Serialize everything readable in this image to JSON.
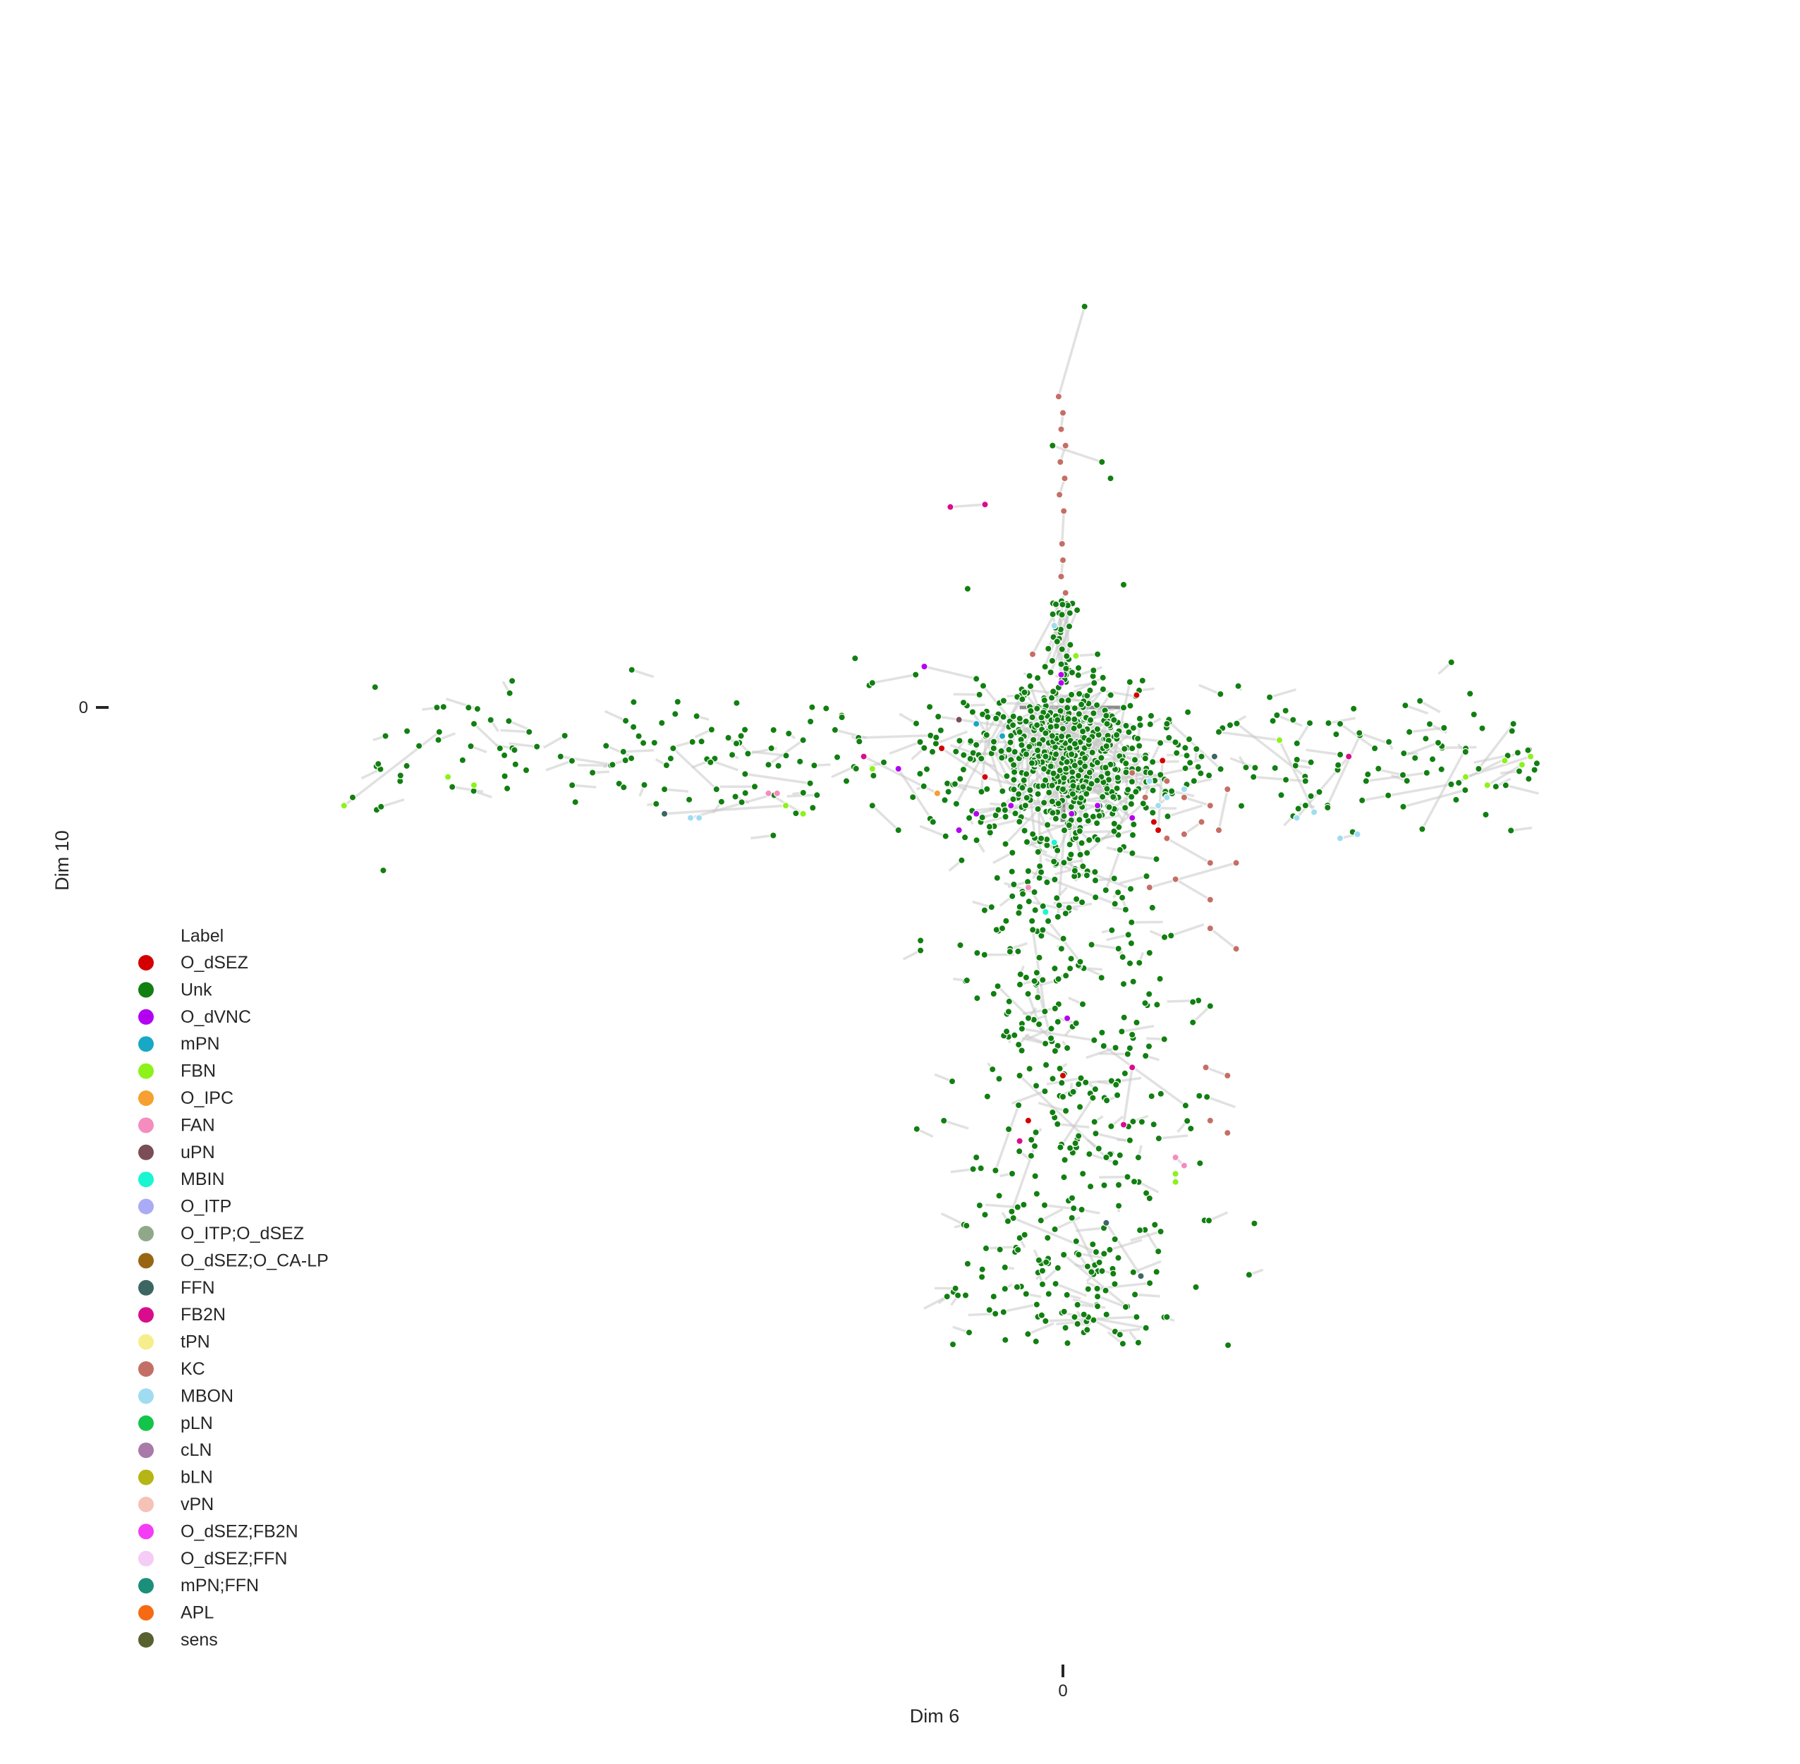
{
  "chart_data": {
    "type": "scatter",
    "xlabel": "Dim 6",
    "ylabel": "Dim 10",
    "xticks": [
      {
        "value": 0,
        "label": "0"
      }
    ],
    "yticks": [
      {
        "value": 0,
        "label": "0"
      }
    ],
    "xlim": [
      -1.0,
      0.7
    ],
    "ylim": [
      -1.0,
      0.55
    ],
    "grid": false,
    "legend": {
      "title": "Label",
      "placement": "bottom-left",
      "entries": [
        {
          "name": "O_dSEZ",
          "color": "#d40000"
        },
        {
          "name": "Unk",
          "color": "#117f11"
        },
        {
          "name": "O_dVNC",
          "color": "#b400f0"
        },
        {
          "name": "mPN",
          "color": "#17a8c6"
        },
        {
          "name": "FBN",
          "color": "#8cf21a"
        },
        {
          "name": "O_IPC",
          "color": "#f5a030"
        },
        {
          "name": "FAN",
          "color": "#f58cbf"
        },
        {
          "name": "uPN",
          "color": "#7a4d57"
        },
        {
          "name": "MBIN",
          "color": "#1af5d2"
        },
        {
          "name": "O_ITP",
          "color": "#aaaaf5"
        },
        {
          "name": "O_ITP;O_dSEZ",
          "color": "#8fa88a"
        },
        {
          "name": "O_dSEZ;O_CA-LP",
          "color": "#9a6512"
        },
        {
          "name": "FFN",
          "color": "#3d6663"
        },
        {
          "name": "FB2N",
          "color": "#d90d8c"
        },
        {
          "name": "tPN",
          "color": "#f5ee8c"
        },
        {
          "name": "KC",
          "color": "#c46f66"
        },
        {
          "name": "MBON",
          "color": "#9fdcf2"
        },
        {
          "name": "pLN",
          "color": "#13c44a"
        },
        {
          "name": "cLN",
          "color": "#a87aa8"
        },
        {
          "name": "bLN",
          "color": "#b5b515"
        },
        {
          "name": "vPN",
          "color": "#f5c2b5"
        },
        {
          "name": "O_dSEZ;FB2N",
          "color": "#f53cf5"
        },
        {
          "name": "O_dSEZ;FFN",
          "color": "#f5ccf5"
        },
        {
          "name": "mPN;FFN",
          "color": "#1a8f7a"
        },
        {
          "name": "APL",
          "color": "#f56a12"
        },
        {
          "name": "sens",
          "color": "#576130"
        }
      ]
    },
    "series_summary": [
      {
        "name": "Unk",
        "distribution": "cross-shaped cloud: horizontal arm along Dim 10 ≈ -0.06 spanning Dim 6 from -0.8 to 0.55; vertical arm along Dim 6 ≈ 0 spanning Dim 10 from 0.47 to -0.78; densest near origin"
      },
      {
        "name": "KC",
        "distribution": "narrow vertical column at Dim 6 ≈ 0 from Dim 10 ≈ 0.4 to 0.1, plus cluster at Dim 6 0.05–0.2, Dim 10 -0.1 to -0.3"
      },
      {
        "name": "O_dVNC",
        "distribution": "scattered near origin, Dim 6 -0.15 to 0.1"
      },
      {
        "name": "FBN",
        "distribution": "far ends of horizontal arm and sparse near origin"
      },
      {
        "name": "MBON",
        "distribution": "small clusters near Dim 10 ≈ -0.1 to -0.15"
      }
    ],
    "points": [
      {
        "label": "Unk",
        "x": 0.025,
        "y": 0.49
      },
      {
        "label": "KC",
        "x": -0.005,
        "y": 0.38
      },
      {
        "label": "KC",
        "x": 0.0,
        "y": 0.36
      },
      {
        "label": "KC",
        "x": -0.002,
        "y": 0.34
      },
      {
        "label": "KC",
        "x": 0.003,
        "y": 0.32
      },
      {
        "label": "KC",
        "x": -0.003,
        "y": 0.3
      },
      {
        "label": "KC",
        "x": 0.002,
        "y": 0.28
      },
      {
        "label": "KC",
        "x": -0.004,
        "y": 0.26
      },
      {
        "label": "KC",
        "x": 0.001,
        "y": 0.24
      },
      {
        "label": "KC",
        "x": -0.001,
        "y": 0.2
      },
      {
        "label": "KC",
        "x": 0.0,
        "y": 0.18
      },
      {
        "label": "KC",
        "x": -0.002,
        "y": 0.16
      },
      {
        "label": "KC",
        "x": 0.003,
        "y": 0.14
      },
      {
        "label": "KC",
        "x": -0.035,
        "y": 0.065
      },
      {
        "label": "FB2N",
        "x": -0.13,
        "y": 0.245
      },
      {
        "label": "FB2N",
        "x": -0.09,
        "y": 0.248
      },
      {
        "label": "Unk",
        "x": -0.012,
        "y": 0.32
      },
      {
        "label": "Unk",
        "x": 0.045,
        "y": 0.3
      },
      {
        "label": "Unk",
        "x": 0.055,
        "y": 0.28
      },
      {
        "label": "Unk",
        "x": -0.11,
        "y": 0.145
      },
      {
        "label": "Unk",
        "x": 0.07,
        "y": 0.15
      },
      {
        "label": "Unk",
        "x": -0.24,
        "y": 0.06
      },
      {
        "label": "Unk",
        "x": -0.22,
        "y": 0.03
      },
      {
        "label": "Unk",
        "x": -0.17,
        "y": 0.04
      },
      {
        "label": "O_dVNC",
        "x": -0.16,
        "y": 0.05
      },
      {
        "label": "Unk",
        "x": -0.1,
        "y": 0.035
      },
      {
        "label": "Unk",
        "x": 0.04,
        "y": 0.065
      },
      {
        "label": "FBN",
        "x": 0.015,
        "y": 0.063
      },
      {
        "label": "MBON",
        "x": -0.01,
        "y": 0.1
      },
      {
        "label": "O_dVNC",
        "x": -0.002,
        "y": 0.04
      },
      {
        "label": "O_dVNC",
        "x": -0.002,
        "y": 0.03
      },
      {
        "label": "Unk",
        "x": -0.82,
        "y": -0.11
      },
      {
        "label": "FBN",
        "x": -0.83,
        "y": -0.12
      },
      {
        "label": "Unk",
        "x": -0.72,
        "y": -0.03
      },
      {
        "label": "Unk",
        "x": -0.65,
        "y": -0.05
      },
      {
        "label": "Unk",
        "x": -0.68,
        "y": -0.02
      },
      {
        "label": "Unk",
        "x": -0.58,
        "y": -0.06
      },
      {
        "label": "Unk",
        "x": -0.52,
        "y": -0.07
      },
      {
        "label": "Unk",
        "x": -0.45,
        "y": -0.05
      },
      {
        "label": "Unk",
        "x": -0.4,
        "y": -0.1
      },
      {
        "label": "Unk",
        "x": -0.34,
        "y": -0.07
      },
      {
        "label": "Unk",
        "x": -0.3,
        "y": -0.04
      },
      {
        "label": "Unk",
        "x": -0.25,
        "y": -0.09
      },
      {
        "label": "FBN",
        "x": -0.68,
        "y": -0.095
      },
      {
        "label": "FBN",
        "x": -0.71,
        "y": -0.085
      },
      {
        "label": "MBON",
        "x": -0.42,
        "y": -0.135
      },
      {
        "label": "MBON",
        "x": -0.43,
        "y": -0.135
      },
      {
        "label": "FAN",
        "x": -0.33,
        "y": -0.105
      },
      {
        "label": "FAN",
        "x": -0.34,
        "y": -0.105
      },
      {
        "label": "FBN",
        "x": -0.3,
        "y": -0.13
      },
      {
        "label": "FBN",
        "x": -0.32,
        "y": -0.12
      },
      {
        "label": "FFN",
        "x": -0.46,
        "y": -0.13
      },
      {
        "label": "Unk",
        "x": -0.22,
        "y": -0.12
      },
      {
        "label": "Unk",
        "x": -0.19,
        "y": -0.15
      },
      {
        "label": "Unk",
        "x": -0.15,
        "y": -0.14
      },
      {
        "label": "O_dVNC",
        "x": -0.19,
        "y": -0.075
      },
      {
        "label": "O_IPC",
        "x": -0.145,
        "y": -0.105
      },
      {
        "label": "FB2N",
        "x": -0.23,
        "y": -0.06
      },
      {
        "label": "FBN",
        "x": -0.22,
        "y": -0.075
      },
      {
        "label": "Unk",
        "x": 0.12,
        "y": -0.02
      },
      {
        "label": "Unk",
        "x": 0.18,
        "y": -0.03
      },
      {
        "label": "Unk",
        "x": 0.25,
        "y": -0.04
      },
      {
        "label": "Unk",
        "x": 0.32,
        "y": -0.02
      },
      {
        "label": "Unk",
        "x": 0.36,
        "y": -0.05
      },
      {
        "label": "Unk",
        "x": 0.4,
        "y": -0.03
      },
      {
        "label": "Unk",
        "x": 0.44,
        "y": -0.025
      },
      {
        "label": "Unk",
        "x": 0.52,
        "y": -0.02
      },
      {
        "label": "Unk",
        "x": 0.48,
        "y": -0.075
      },
      {
        "label": "Unk",
        "x": 0.42,
        "y": -0.08
      },
      {
        "label": "Unk",
        "x": 0.35,
        "y": -0.09
      },
      {
        "label": "Unk",
        "x": 0.28,
        "y": -0.09
      },
      {
        "label": "Unk",
        "x": 0.22,
        "y": -0.085
      },
      {
        "label": "Unk",
        "x": 0.16,
        "y": -0.06
      },
      {
        "label": "FBN",
        "x": 0.51,
        "y": -0.065
      },
      {
        "label": "FBN",
        "x": 0.53,
        "y": -0.07
      },
      {
        "label": "FBN",
        "x": 0.49,
        "y": -0.095
      },
      {
        "label": "FBN",
        "x": 0.465,
        "y": -0.085
      },
      {
        "label": "FBN",
        "x": 0.54,
        "y": -0.06
      },
      {
        "label": "FB2N",
        "x": 0.33,
        "y": -0.06
      },
      {
        "label": "MBON",
        "x": 0.27,
        "y": -0.135
      },
      {
        "label": "MBON",
        "x": 0.29,
        "y": -0.128
      },
      {
        "label": "FBN",
        "x": 0.25,
        "y": -0.04
      },
      {
        "label": "O_dSEZ",
        "x": 0.085,
        "y": 0.015
      },
      {
        "label": "O_dSEZ",
        "x": 0.105,
        "y": -0.14
      },
      {
        "label": "O_dSEZ",
        "x": 0.11,
        "y": -0.15
      },
      {
        "label": "O_dSEZ",
        "x": 0.115,
        "y": -0.065
      },
      {
        "label": "O_dSEZ",
        "x": -0.09,
        "y": -0.085
      },
      {
        "label": "O_dSEZ",
        "x": -0.14,
        "y": -0.05
      },
      {
        "label": "KC",
        "x": 0.08,
        "y": -0.08
      },
      {
        "label": "KC",
        "x": 0.12,
        "y": -0.09
      },
      {
        "label": "KC",
        "x": 0.14,
        "y": -0.11
      },
      {
        "label": "KC",
        "x": 0.17,
        "y": -0.12
      },
      {
        "label": "KC",
        "x": 0.19,
        "y": -0.1
      },
      {
        "label": "KC",
        "x": 0.18,
        "y": -0.15
      },
      {
        "label": "KC",
        "x": 0.16,
        "y": -0.14
      },
      {
        "label": "KC",
        "x": 0.14,
        "y": -0.155
      },
      {
        "label": "KC",
        "x": 0.12,
        "y": -0.16
      },
      {
        "label": "KC",
        "x": 0.17,
        "y": -0.19
      },
      {
        "label": "KC",
        "x": 0.2,
        "y": -0.19
      },
      {
        "label": "KC",
        "x": 0.1,
        "y": -0.22
      },
      {
        "label": "KC",
        "x": 0.13,
        "y": -0.21
      },
      {
        "label": "KC",
        "x": 0.17,
        "y": -0.235
      },
      {
        "label": "KC",
        "x": 0.17,
        "y": -0.27
      },
      {
        "label": "KC",
        "x": 0.2,
        "y": -0.295
      },
      {
        "label": "KC",
        "x": 0.165,
        "y": -0.44
      },
      {
        "label": "KC",
        "x": 0.19,
        "y": -0.45
      },
      {
        "label": "KC",
        "x": 0.095,
        "y": -0.11
      },
      {
        "label": "MBON",
        "x": 0.1,
        "y": -0.09
      },
      {
        "label": "MBON",
        "x": 0.11,
        "y": -0.12
      },
      {
        "label": "MBON",
        "x": 0.12,
        "y": -0.11
      },
      {
        "label": "MBON",
        "x": 0.14,
        "y": -0.1
      },
      {
        "label": "O_dVNC",
        "x": -0.12,
        "y": -0.15
      },
      {
        "label": "O_dVNC",
        "x": -0.1,
        "y": -0.13
      },
      {
        "label": "O_dVNC",
        "x": -0.06,
        "y": -0.12
      },
      {
        "label": "O_dVNC",
        "x": 0.01,
        "y": -0.13
      },
      {
        "label": "O_dVNC",
        "x": 0.04,
        "y": -0.12
      },
      {
        "label": "O_dVNC",
        "x": 0.08,
        "y": -0.135
      },
      {
        "label": "O_dVNC",
        "x": -0.02,
        "y": -0.06
      },
      {
        "label": "O_dVNC",
        "x": 0.005,
        "y": -0.38
      },
      {
        "label": "mPN",
        "x": -0.1,
        "y": -0.02
      },
      {
        "label": "mPN",
        "x": -0.07,
        "y": -0.035
      },
      {
        "label": "MBIN",
        "x": -0.01,
        "y": -0.165
      },
      {
        "label": "MBIN",
        "x": -0.02,
        "y": -0.25
      },
      {
        "label": "FAN",
        "x": -0.04,
        "y": -0.22
      },
      {
        "label": "FAN",
        "x": 0.13,
        "y": -0.55
      },
      {
        "label": "FAN",
        "x": 0.14,
        "y": -0.56
      },
      {
        "label": "FBN",
        "x": 0.13,
        "y": -0.57
      },
      {
        "label": "FBN",
        "x": 0.13,
        "y": -0.58
      },
      {
        "label": "MBON",
        "x": 0.32,
        "y": -0.16
      },
      {
        "label": "MBON",
        "x": 0.34,
        "y": -0.155
      },
      {
        "label": "uPN",
        "x": -0.12,
        "y": -0.015
      },
      {
        "label": "FFN",
        "x": 0.175,
        "y": -0.06
      },
      {
        "label": "FFN",
        "x": 0.05,
        "y": -0.63
      },
      {
        "label": "FFN",
        "x": 0.09,
        "y": -0.695
      },
      {
        "label": "FB2N",
        "x": 0.08,
        "y": -0.44
      },
      {
        "label": "FB2N",
        "x": 0.07,
        "y": -0.51
      },
      {
        "label": "FB2N",
        "x": -0.05,
        "y": -0.53
      },
      {
        "label": "KC",
        "x": 0.17,
        "y": -0.505
      },
      {
        "label": "KC",
        "x": 0.19,
        "y": -0.52
      },
      {
        "label": "O_dSEZ",
        "x": -0.04,
        "y": -0.505
      },
      {
        "label": "O_dSEZ",
        "x": 0.0,
        "y": -0.45
      },
      {
        "label": "Unk",
        "x": 0.15,
        "y": -0.36
      },
      {
        "label": "Unk",
        "x": 0.17,
        "y": -0.365
      },
      {
        "label": "Unk",
        "x": 0.15,
        "y": -0.385
      },
      {
        "label": "Unk",
        "x": -0.02,
        "y": -0.75
      },
      {
        "label": "Unk",
        "x": 0.085,
        "y": -0.745
      },
      {
        "label": "Unk",
        "x": 0.12,
        "y": -0.745
      },
      {
        "label": "Unk",
        "x": -0.08,
        "y": -0.72
      },
      {
        "label": "Unk",
        "x": 0.04,
        "y": -0.72
      },
      {
        "label": "Unk",
        "x": -0.11,
        "y": -0.68
      },
      {
        "label": "Unk",
        "x": 0.06,
        "y": -0.65
      },
      {
        "label": "Unk",
        "x": -0.09,
        "y": -0.62
      },
      {
        "label": "Unk",
        "x": 0.1,
        "y": -0.6
      },
      {
        "label": "Unk",
        "x": -0.1,
        "y": -0.55
      },
      {
        "label": "Unk",
        "x": 0.05,
        "y": -0.55
      },
      {
        "label": "Unk",
        "x": -0.05,
        "y": -0.45
      },
      {
        "label": "Unk",
        "x": 0.08,
        "y": -0.4
      },
      {
        "label": "Unk",
        "x": -0.08,
        "y": -0.35
      },
      {
        "label": "Unk",
        "x": 0.1,
        "y": -0.3
      },
      {
        "label": "Unk",
        "x": -0.07,
        "y": -0.27
      },
      {
        "label": "Unk",
        "x": 0.06,
        "y": -0.24
      },
      {
        "label": "Unk",
        "x": -0.04,
        "y": -0.2
      },
      {
        "label": "Unk",
        "x": 0.02,
        "y": -0.18
      },
      {
        "label": "Unk",
        "x": 0.0,
        "y": -0.1
      },
      {
        "label": "Unk",
        "x": -0.02,
        "y": -0.06
      },
      {
        "label": "Unk",
        "x": 0.03,
        "y": -0.04
      },
      {
        "label": "Unk",
        "x": -0.05,
        "y": -0.03
      },
      {
        "label": "Unk",
        "x": 0.05,
        "y": -0.01
      },
      {
        "label": "Unk",
        "x": -0.08,
        "y": -0.05
      },
      {
        "label": "Unk",
        "x": 0.08,
        "y": -0.05
      }
    ]
  }
}
